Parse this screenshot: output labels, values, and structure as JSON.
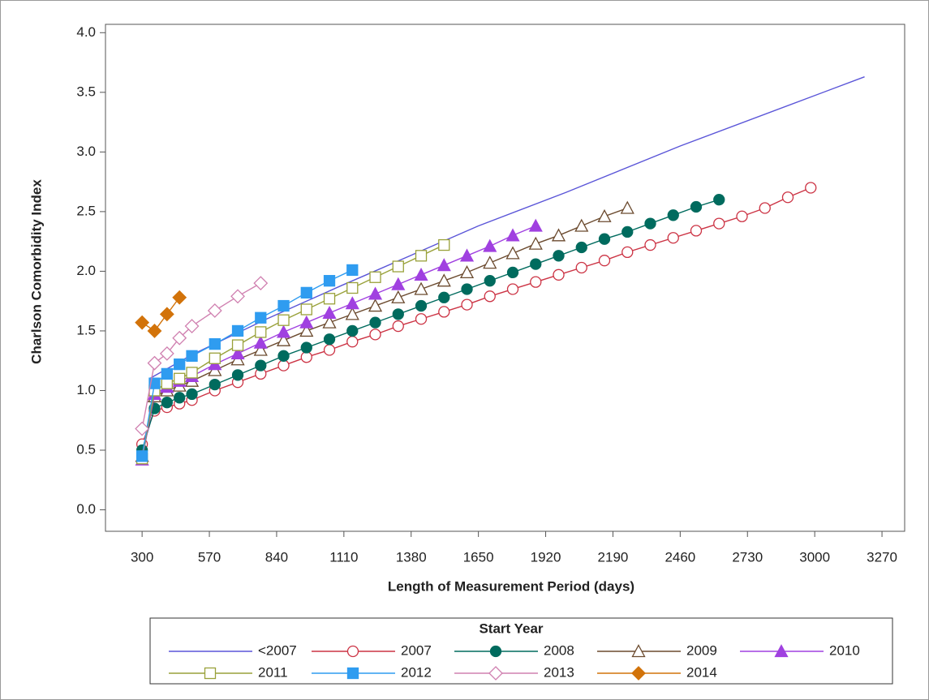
{
  "chart_data": {
    "type": "line",
    "x_label": "Length of Measurement Period (days)",
    "y_label": "Charlson Comorbidity Index",
    "legend_title": "Start Year",
    "legend": "bottom",
    "xlim": [
      153,
      3361
    ],
    "ylim": [
      -0.18,
      4.07
    ],
    "xticks": [
      300,
      570,
      840,
      1110,
      1380,
      1650,
      1920,
      2190,
      2460,
      2730,
      3000,
      3270
    ],
    "yticks": [
      {
        "value": 0,
        "label": "0.0"
      },
      0.5,
      {
        "value": 1,
        "label": "1.0"
      },
      1.5,
      {
        "value": 2,
        "label": "2.0"
      },
      2.5,
      {
        "value": 3,
        "label": "3.0"
      },
      3.5,
      {
        "value": 4,
        "label": "4.0"
      }
    ],
    "series": [
      {
        "name": "<2007",
        "color": "#5a55d8",
        "marker": "none",
        "filled": false,
        "x": [
          330,
          500,
          800,
          1100,
          1200,
          1650,
          2000,
          2460,
          3200
        ],
        "values": [
          1.1,
          1.3,
          1.6,
          1.88,
          1.97,
          2.38,
          2.66,
          3.05,
          3.63
        ]
      },
      {
        "name": "2007",
        "color": "#cc3344",
        "marker": "circle",
        "filled": false,
        "x": [
          300,
          350,
          400,
          450,
          500,
          592,
          684,
          776,
          868,
          960,
          1052,
          1144,
          1236,
          1328,
          1420,
          1512,
          1604,
          1696,
          1788,
          1880,
          1972,
          2064,
          2156,
          2248,
          2340,
          2432,
          2524,
          2616,
          2708,
          2800,
          2892,
          2984
        ],
        "values": [
          0.55,
          0.83,
          0.86,
          0.89,
          0.92,
          1.0,
          1.07,
          1.14,
          1.21,
          1.28,
          1.34,
          1.41,
          1.47,
          1.54,
          1.6,
          1.66,
          1.72,
          1.79,
          1.85,
          1.91,
          1.97,
          2.03,
          2.09,
          2.16,
          2.22,
          2.28,
          2.34,
          2.4,
          2.46,
          2.53,
          2.62,
          2.7
        ]
      },
      {
        "name": "2008",
        "color": "#006b5e",
        "marker": "circle",
        "filled": true,
        "x": [
          300,
          350,
          400,
          450,
          500,
          592,
          684,
          776,
          868,
          960,
          1052,
          1144,
          1236,
          1328,
          1420,
          1512,
          1604,
          1696,
          1788,
          1880,
          1972,
          2064,
          2156,
          2248,
          2340,
          2432,
          2524,
          2616
        ],
        "values": [
          0.5,
          0.85,
          0.9,
          0.94,
          0.97,
          1.05,
          1.13,
          1.21,
          1.29,
          1.36,
          1.43,
          1.5,
          1.57,
          1.64,
          1.71,
          1.78,
          1.85,
          1.92,
          1.99,
          2.06,
          2.13,
          2.2,
          2.27,
          2.33,
          2.4,
          2.47,
          2.54,
          2.6
        ]
      },
      {
        "name": "2009",
        "color": "#6b4a2e",
        "marker": "triangle",
        "filled": false,
        "x": [
          300,
          350,
          400,
          450,
          500,
          592,
          684,
          776,
          868,
          960,
          1052,
          1144,
          1236,
          1328,
          1420,
          1512,
          1604,
          1696,
          1788,
          1880,
          1972,
          2064,
          2156,
          2248
        ],
        "values": [
          0.45,
          0.95,
          1.0,
          1.04,
          1.08,
          1.17,
          1.26,
          1.34,
          1.42,
          1.5,
          1.57,
          1.64,
          1.71,
          1.78,
          1.85,
          1.92,
          1.99,
          2.07,
          2.15,
          2.23,
          2.3,
          2.38,
          2.46,
          2.53
        ]
      },
      {
        "name": "2010",
        "color": "#a040e0",
        "marker": "triangle",
        "filled": true,
        "x": [
          300,
          350,
          400,
          450,
          500,
          592,
          684,
          776,
          868,
          960,
          1052,
          1144,
          1236,
          1328,
          1420,
          1512,
          1604,
          1696,
          1788,
          1880
        ],
        "values": [
          0.42,
          0.97,
          1.03,
          1.08,
          1.12,
          1.22,
          1.31,
          1.4,
          1.49,
          1.57,
          1.65,
          1.73,
          1.81,
          1.89,
          1.97,
          2.05,
          2.13,
          2.21,
          2.3,
          2.38
        ]
      },
      {
        "name": "2011",
        "color": "#99a13a",
        "marker": "square",
        "filled": false,
        "x": [
          300,
          350,
          400,
          450,
          500,
          592,
          684,
          776,
          868,
          960,
          1052,
          1144,
          1236,
          1328,
          1420,
          1512
        ],
        "values": [
          0.43,
          1.0,
          1.06,
          1.1,
          1.15,
          1.27,
          1.38,
          1.49,
          1.59,
          1.68,
          1.77,
          1.86,
          1.95,
          2.04,
          2.13,
          2.22
        ]
      },
      {
        "name": "2012",
        "color": "#2f9cf0",
        "marker": "square",
        "filled": true,
        "x": [
          300,
          350,
          400,
          450,
          500,
          592,
          684,
          776,
          868,
          960,
          1052,
          1144
        ],
        "values": [
          0.45,
          1.06,
          1.14,
          1.22,
          1.29,
          1.39,
          1.5,
          1.61,
          1.71,
          1.82,
          1.92,
          2.01
        ]
      },
      {
        "name": "2013",
        "color": "#d080b0",
        "marker": "diamond",
        "filled": false,
        "x": [
          300,
          350,
          400,
          450,
          500,
          592,
          684,
          776
        ],
        "values": [
          0.68,
          1.23,
          1.31,
          1.44,
          1.54,
          1.67,
          1.79,
          1.9
        ]
      },
      {
        "name": "2014",
        "color": "#d2730a",
        "marker": "diamond",
        "filled": true,
        "x": [
          300,
          350,
          400,
          450
        ],
        "values": [
          1.57,
          1.5,
          1.64,
          1.78
        ]
      }
    ]
  }
}
